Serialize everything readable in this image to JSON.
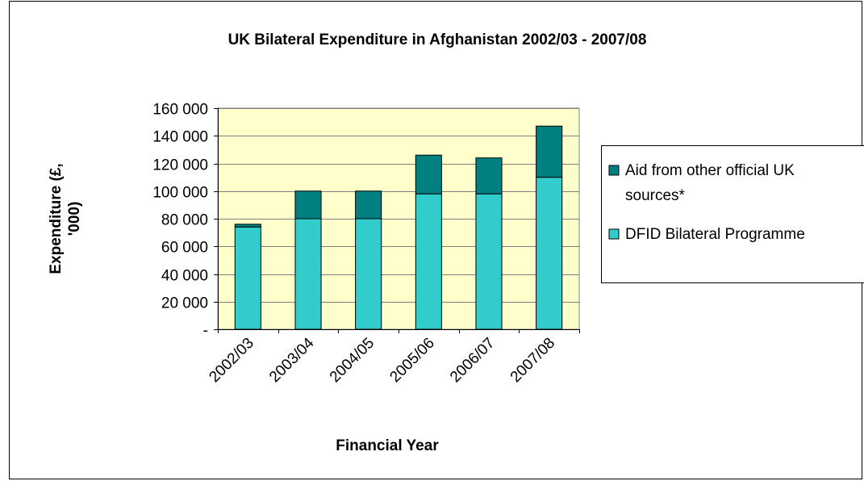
{
  "chart_data": {
    "type": "bar",
    "stacked": true,
    "title": "UK Bilateral Expenditure in Afghanistan 2002/03 - 2007/08",
    "xlabel": "Financial Year",
    "ylabel_lines": [
      "Expenditure (£,",
      "'000)"
    ],
    "categories": [
      "2002/03",
      "2003/04",
      "2004/05",
      "2005/06",
      "2006/07",
      "2007/08"
    ],
    "y_tick_values": [
      0,
      20000,
      40000,
      60000,
      80000,
      100000,
      120000,
      140000,
      160000
    ],
    "y_tick_labels": [
      "-",
      "20 000",
      "40 000",
      "60 000",
      "80 000",
      "100 000",
      "120 000",
      "140 000",
      "160 000"
    ],
    "ylim": [
      0,
      160000
    ],
    "grid": true,
    "legend_position": "right",
    "series": [
      {
        "name": "DFID Bilateral Programme",
        "color": "#33CCCC",
        "values": [
          74000,
          80000,
          80000,
          98000,
          98000,
          110000
        ]
      },
      {
        "name": "Aid from other official UK sources*",
        "legend_lines": [
          "Aid from other official UK",
          "sources*"
        ],
        "color": "#008080",
        "values": [
          2000,
          20000,
          20000,
          28000,
          26000,
          37000
        ]
      }
    ],
    "plot_background": "#FFFFCC"
  }
}
